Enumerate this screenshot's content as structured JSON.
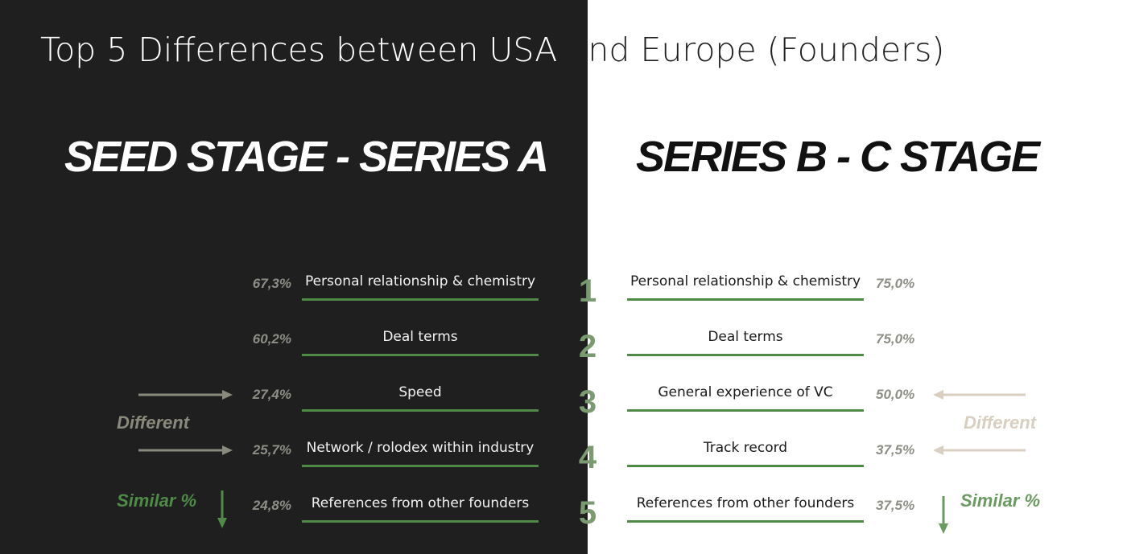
{
  "title": "Top 5 Differences between USA  and Europe (Founders)",
  "stages": {
    "left": "SEED STAGE - SERIES A",
    "right": "SERIES B - C STAGE"
  },
  "ranks": [
    "1",
    "2",
    "3",
    "4",
    "5"
  ],
  "seed": {
    "labels": [
      "Personal relationship & chemistry",
      "Deal terms",
      "Speed",
      "Network / rolodex within industry",
      "References from other founders"
    ],
    "percents": [
      "67,3%",
      "60,2%",
      "27,4%",
      "25,7%",
      "24,8%"
    ]
  },
  "series_bc": {
    "labels": [
      "Personal relationship & chemistry",
      "Deal terms",
      "General experience of VC",
      "Track record",
      "References from other founders"
    ],
    "percents": [
      "75,0%",
      "75,0%",
      "50,0%",
      "37,5%",
      "37,5%"
    ]
  },
  "callouts": {
    "different": "Different",
    "similar": "Similar %"
  },
  "colors": {
    "dark_panel": "#1f1f1f",
    "accent_green": "#4f8a47",
    "percent_gray": "#8e8e86",
    "different_left": "#8a8a7c",
    "different_right": "#d8cfc0"
  }
}
